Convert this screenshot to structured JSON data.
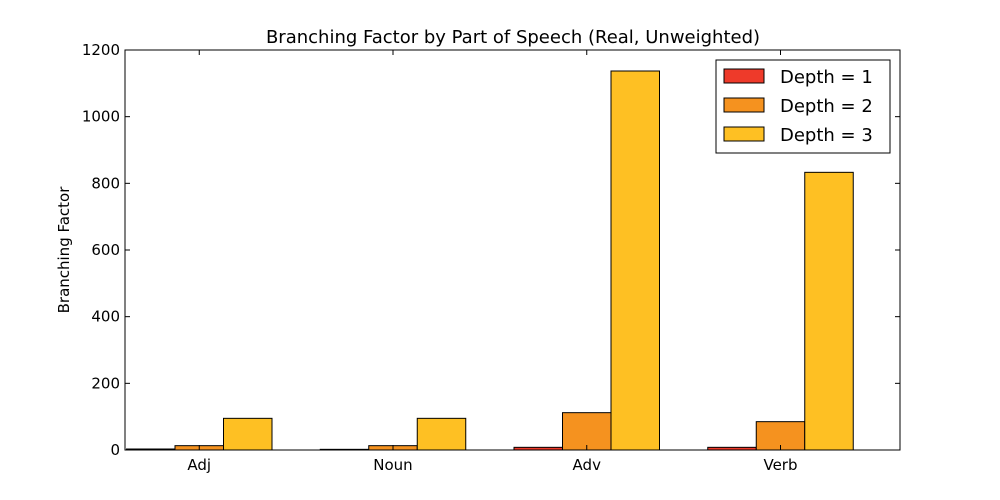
{
  "chart_data": {
    "type": "bar",
    "title": "Branching Factor by Part of Speech (Real, Unweighted)",
    "xlabel": "",
    "ylabel": "Branching Factor",
    "categories": [
      "Adj",
      "Noun",
      "Adv",
      "Verb"
    ],
    "series": [
      {
        "name": "Depth = 1",
        "color": "#ee3a2a",
        "values": [
          3,
          2,
          8,
          8
        ]
      },
      {
        "name": "Depth = 2",
        "color": "#f5921f",
        "values": [
          13,
          13,
          112,
          85
        ]
      },
      {
        "name": "Depth = 3",
        "color": "#fec023",
        "values": [
          95,
          95,
          1137,
          833
        ]
      }
    ],
    "ylim": [
      0,
      1200
    ],
    "yticks": [
      0,
      200,
      400,
      600,
      800,
      1000,
      1200
    ],
    "grid": false,
    "legend_position": "top-right"
  }
}
